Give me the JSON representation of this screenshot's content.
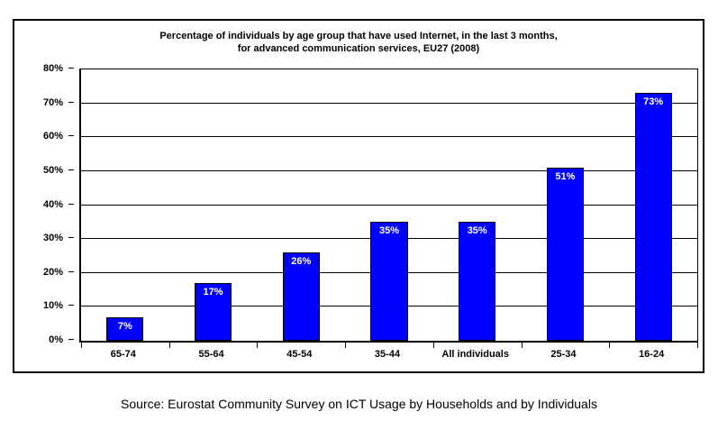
{
  "chart_data": {
    "type": "bar",
    "title": "Percentage of individuals by age group that have used Internet, in the last 3 months, for advanced communication services, EU27 (2008)",
    "title_line1": "Percentage of individuals by age group that have used Internet, in the last 3 months,",
    "title_line2": "for advanced communication services, EU27 (2008)",
    "categories": [
      "65-74",
      "55-64",
      "45-54",
      "35-44",
      "All individuals",
      "25-34",
      "16-24"
    ],
    "values": [
      7,
      17,
      26,
      35,
      35,
      51,
      73
    ],
    "value_labels": [
      "7%",
      "17%",
      "26%",
      "35%",
      "35%",
      "51%",
      "73%"
    ],
    "xlabel": "",
    "ylabel": "",
    "ylim": [
      0,
      80
    ],
    "ytick_step": 10,
    "ytick_labels": [
      "0%",
      "10%",
      "20%",
      "30%",
      "40%",
      "50%",
      "60%",
      "70%",
      "80%"
    ],
    "grid": true,
    "legend_position": "none",
    "bar_color": "#0000fe",
    "bar_border_color": "#000000",
    "bar_label_color": "#ffffff",
    "gridline_color": "#000000"
  },
  "source": {
    "text": "Source: Eurostat Community Survey on ICT Usage by Households and by Individuals"
  }
}
